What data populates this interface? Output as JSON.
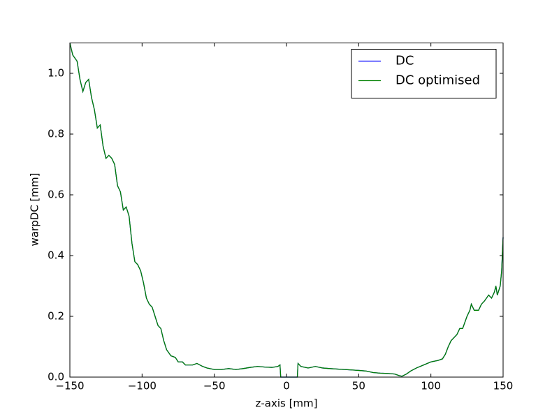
{
  "chart_data": {
    "type": "line",
    "xlabel": "z-axis [mm]",
    "ylabel": "warpDC [mm]",
    "x": [
      -150,
      -148,
      -145,
      -143,
      -141,
      -139,
      -137,
      -135,
      -133,
      -131,
      -129,
      -127,
      -125,
      -123,
      -121,
      -119,
      -117,
      -115,
      -113,
      -111,
      -109,
      -107,
      -105,
      -103,
      -101,
      -99,
      -97,
      -95,
      -93,
      -91,
      -89,
      -87,
      -85,
      -83,
      -80,
      -77,
      -75,
      -72,
      -70,
      -65,
      -62,
      -58,
      -55,
      -50,
      -45,
      -40,
      -35,
      -30,
      -25,
      -20,
      -15,
      -10,
      -6,
      -4.5,
      -4,
      0,
      4,
      7.5,
      8,
      10,
      15,
      20,
      25,
      30,
      40,
      50,
      55,
      60,
      65,
      70,
      75,
      78,
      80,
      83,
      86,
      90,
      95,
      100,
      105,
      108,
      110,
      112,
      114,
      116,
      118,
      120,
      122,
      125,
      127,
      128,
      130,
      133,
      135,
      137,
      140,
      142,
      144,
      145,
      146,
      148,
      149,
      150
    ],
    "series": [
      {
        "name": "DC",
        "color": "#0000ff",
        "values": [
          1.1,
          1.06,
          1.04,
          0.98,
          0.94,
          0.97,
          0.98,
          0.92,
          0.88,
          0.82,
          0.83,
          0.76,
          0.72,
          0.73,
          0.72,
          0.7,
          0.63,
          0.61,
          0.55,
          0.56,
          0.53,
          0.44,
          0.38,
          0.37,
          0.35,
          0.31,
          0.26,
          0.24,
          0.23,
          0.2,
          0.17,
          0.16,
          0.12,
          0.09,
          0.07,
          0.065,
          0.05,
          0.05,
          0.04,
          0.04,
          0.045,
          0.035,
          0.03,
          0.025,
          0.025,
          0.028,
          0.025,
          0.028,
          0.032,
          0.035,
          0.033,
          0.032,
          0.035,
          0.04,
          0,
          0,
          0,
          0,
          0.045,
          0.035,
          0.03,
          0.035,
          0.03,
          0.028,
          0.025,
          0.022,
          0.02,
          0.015,
          0.013,
          0.012,
          0.01,
          0.005,
          0.003,
          0.01,
          0.02,
          0.03,
          0.04,
          0.05,
          0.055,
          0.06,
          0.075,
          0.1,
          0.12,
          0.13,
          0.14,
          0.16,
          0.16,
          0.2,
          0.22,
          0.24,
          0.22,
          0.22,
          0.24,
          0.25,
          0.27,
          0.26,
          0.28,
          0.3,
          0.27,
          0.3,
          0.35,
          0.46
        ]
      },
      {
        "name": "DC optimised",
        "color": "#008000",
        "values": [
          1.1,
          1.06,
          1.04,
          0.98,
          0.94,
          0.97,
          0.98,
          0.92,
          0.88,
          0.82,
          0.83,
          0.76,
          0.72,
          0.73,
          0.72,
          0.7,
          0.63,
          0.61,
          0.55,
          0.56,
          0.53,
          0.44,
          0.38,
          0.37,
          0.35,
          0.31,
          0.26,
          0.24,
          0.23,
          0.2,
          0.17,
          0.16,
          0.12,
          0.09,
          0.07,
          0.065,
          0.05,
          0.05,
          0.04,
          0.04,
          0.045,
          0.035,
          0.03,
          0.025,
          0.025,
          0.028,
          0.025,
          0.028,
          0.032,
          0.035,
          0.033,
          0.032,
          0.035,
          0.04,
          0,
          0,
          0,
          0,
          0.045,
          0.035,
          0.03,
          0.035,
          0.03,
          0.028,
          0.025,
          0.022,
          0.02,
          0.015,
          0.013,
          0.012,
          0.01,
          0.005,
          0.003,
          0.01,
          0.02,
          0.03,
          0.04,
          0.05,
          0.055,
          0.06,
          0.075,
          0.1,
          0.12,
          0.13,
          0.14,
          0.16,
          0.16,
          0.2,
          0.22,
          0.24,
          0.22,
          0.22,
          0.24,
          0.25,
          0.27,
          0.26,
          0.28,
          0.3,
          0.27,
          0.3,
          0.35,
          0.46
        ]
      }
    ],
    "xlim": [
      -150,
      150
    ],
    "xticks": [
      {
        "value": -150,
        "label": "−150"
      },
      {
        "value": -100,
        "label": "−100"
      },
      {
        "value": -50,
        "label": "−50"
      },
      0,
      50,
      100,
      150
    ],
    "ylim": [
      0,
      1.1
    ],
    "yticks": [
      {
        "value": 0,
        "label": "0.0"
      },
      {
        "value": 0.2,
        "label": "0.2"
      },
      {
        "value": 0.4,
        "label": "0.4"
      },
      {
        "value": 0.6,
        "label": "0.6"
      },
      {
        "value": 0.8,
        "label": "0.8"
      },
      {
        "value": 1.0,
        "label": "1.0"
      }
    ],
    "grid": false,
    "legend": "upper right"
  }
}
